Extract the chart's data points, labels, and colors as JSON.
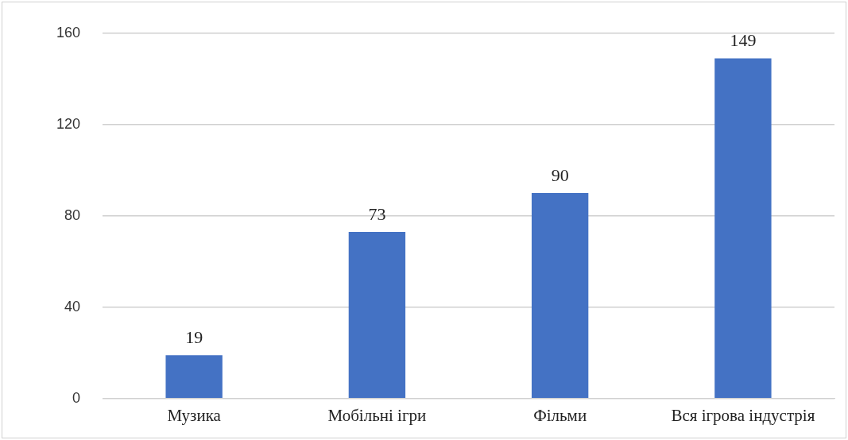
{
  "chart_data": {
    "type": "bar",
    "categories": [
      "Музика",
      "Мобільні ігри",
      "Фільми",
      "Вся ігрова індустрія"
    ],
    "values": [
      19,
      73,
      90,
      149
    ],
    "color": "#4472c4",
    "ylim": [
      0,
      160
    ],
    "yticks": [
      0,
      40,
      80,
      120,
      160
    ],
    "grid": "y",
    "data_labels": true,
    "legend": false
  }
}
